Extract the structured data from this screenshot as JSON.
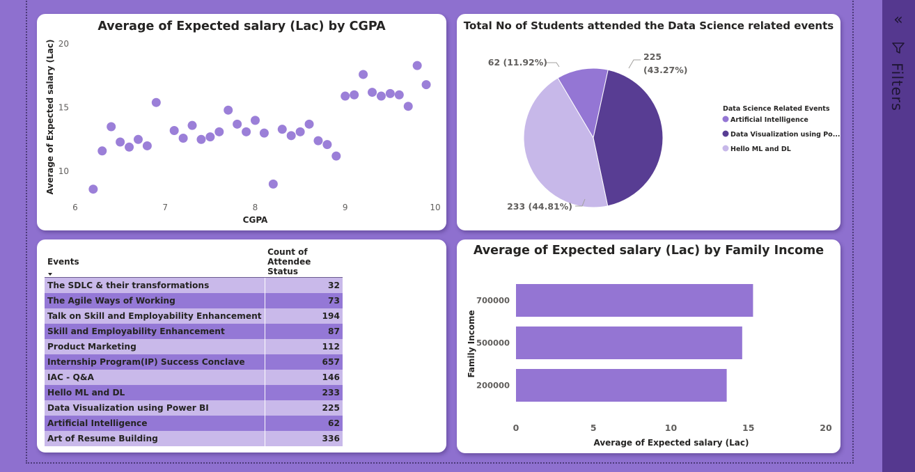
{
  "scatter": {
    "chart_data": {
      "type": "scatter",
      "title": "Average of Expected salary (Lac) by CGPA",
      "xlabel": "CGPA",
      "ylabel": "Average of Expected salary (Lac)",
      "xlim": [
        6,
        10
      ],
      "ylim": [
        7,
        20
      ],
      "xticks": [
        6,
        7,
        8,
        9,
        10
      ],
      "yticks": [
        10,
        15,
        20
      ],
      "color": "#9b7fd8",
      "points": [
        [
          6.2,
          8.6
        ],
        [
          6.3,
          11.6
        ],
        [
          6.4,
          13.5
        ],
        [
          6.5,
          12.3
        ],
        [
          6.6,
          11.9
        ],
        [
          6.7,
          12.5
        ],
        [
          6.8,
          12.0
        ],
        [
          6.9,
          15.4
        ],
        [
          7.1,
          13.2
        ],
        [
          7.2,
          12.6
        ],
        [
          7.3,
          13.6
        ],
        [
          7.4,
          12.5
        ],
        [
          7.5,
          12.7
        ],
        [
          7.6,
          13.1
        ],
        [
          7.7,
          14.8
        ],
        [
          7.8,
          13.7
        ],
        [
          7.9,
          13.1
        ],
        [
          8.0,
          14.0
        ],
        [
          8.1,
          13.0
        ],
        [
          8.2,
          9.0
        ],
        [
          8.3,
          13.3
        ],
        [
          8.4,
          12.8
        ],
        [
          8.5,
          13.1
        ],
        [
          8.6,
          13.7
        ],
        [
          8.7,
          12.4
        ],
        [
          8.8,
          12.1
        ],
        [
          8.9,
          11.2
        ],
        [
          9.0,
          15.9
        ],
        [
          9.1,
          16.0
        ],
        [
          9.2,
          17.6
        ],
        [
          9.3,
          16.2
        ],
        [
          9.4,
          15.9
        ],
        [
          9.5,
          16.1
        ],
        [
          9.6,
          16.0
        ],
        [
          9.7,
          15.1
        ],
        [
          9.8,
          18.3
        ],
        [
          9.9,
          16.8
        ]
      ]
    }
  },
  "pie": {
    "chart_data": {
      "type": "pie",
      "title": "Total No of Students attended the Data Science related events",
      "legend_title": "Data Science Related Events",
      "legend_position": "right",
      "slices": [
        {
          "label": "Artificial Intelligence",
          "legend_text": "Artificial Intelligence",
          "value": 62,
          "data_label_1": "62 (11.92%)",
          "data_label_2": "",
          "color": "#9476d4"
        },
        {
          "label": "Data Visualization using Power BI",
          "legend_text": "Data Visualization using Po...",
          "value": 225,
          "data_label_1": "225",
          "data_label_2": "(43.27%)",
          "color": "#583d93"
        },
        {
          "label": "Hello ML and DL",
          "legend_text": "Hello ML and DL",
          "value": 233,
          "data_label_1": "233 (44.81%)",
          "data_label_2": "",
          "color": "#c7b8e9"
        }
      ]
    }
  },
  "table": {
    "col_events": "Events",
    "col_count": "Count of Attendee Status",
    "rows": [
      {
        "event": "The SDLC & their transformations",
        "count": "32"
      },
      {
        "event": "The Agile Ways of Working",
        "count": "73"
      },
      {
        "event": "Talk on Skill and Employability Enhancement",
        "count": "194"
      },
      {
        "event": "Skill and Employability Enhancement",
        "count": "87"
      },
      {
        "event": "Product Marketing",
        "count": "112"
      },
      {
        "event": "Internship Program(IP) Success Conclave",
        "count": "657"
      },
      {
        "event": "IAC - Q&A",
        "count": "146"
      },
      {
        "event": "Hello ML and DL",
        "count": "233"
      },
      {
        "event": "Data Visualization using Power BI",
        "count": "225"
      },
      {
        "event": "Artificial Intelligence",
        "count": "62"
      },
      {
        "event": "Art of Resume Building",
        "count": "336"
      }
    ]
  },
  "bar": {
    "chart_data": {
      "type": "bar",
      "orientation": "horizontal",
      "title": "Average of Expected salary (Lac) by Family Income",
      "xlabel": "Average of Expected salary (Lac)",
      "ylabel": "Family Income",
      "categories": [
        "700000",
        "500000",
        "200000"
      ],
      "values": [
        15.3,
        14.6,
        13.6
      ],
      "xlim": [
        0,
        20
      ],
      "xticks": [
        0,
        5,
        10,
        15,
        20
      ],
      "color": "#9475d3"
    }
  },
  "filters": {
    "label": "Filters",
    "collapse_icon": "double-chevron-left",
    "funnel_icon": "filter-funnel"
  }
}
